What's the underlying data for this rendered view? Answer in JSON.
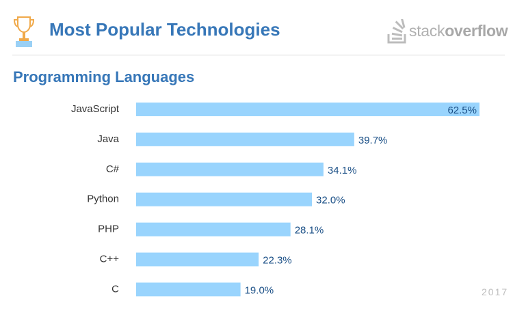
{
  "header": {
    "title": "Most Popular Technologies",
    "logo_text_regular": "stack",
    "logo_text_bold": "overflow",
    "trophy_icon": "trophy-icon",
    "logo_icon": "stackoverflow-icon"
  },
  "section": {
    "title": "Programming Languages"
  },
  "footer": {
    "year": "2017"
  },
  "colors": {
    "accent": "#3777b8",
    "bar": "#99d4fd",
    "value_text": "#1a4f86"
  },
  "chart_data": {
    "type": "bar",
    "orientation": "horizontal",
    "categories": [
      "JavaScript",
      "Java",
      "C#",
      "Python",
      "PHP",
      "C++",
      "C"
    ],
    "values": [
      62.5,
      39.7,
      34.1,
      32.0,
      28.1,
      22.3,
      19.0
    ],
    "value_labels": [
      "62.5%",
      "39.7%",
      "34.1%",
      "32.0%",
      "28.1%",
      "22.3%",
      "19.0%"
    ],
    "xlim": [
      0,
      62.5
    ],
    "grid": false
  }
}
